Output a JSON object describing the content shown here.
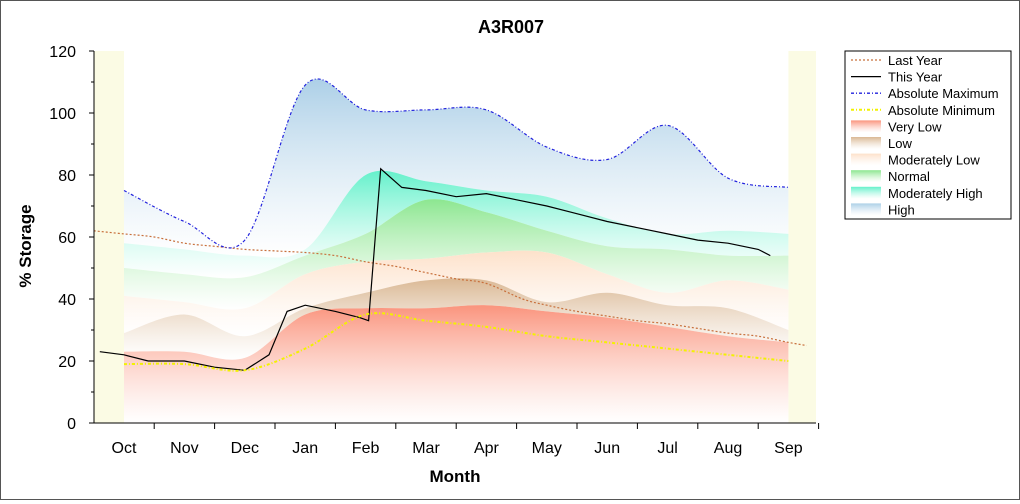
{
  "chart_data": {
    "type": "area",
    "title": "A3R007",
    "xlabel": "Month",
    "ylabel": "% Storage",
    "ylim": [
      0,
      120
    ],
    "yticks": [
      0,
      20,
      40,
      60,
      80,
      100,
      120
    ],
    "categories": [
      "Oct",
      "Nov",
      "Dec",
      "Jan",
      "Feb",
      "Mar",
      "Apr",
      "May",
      "Jun",
      "Jul",
      "Aug",
      "Sep"
    ],
    "legend_position": "right",
    "band_months": [
      0,
      1,
      2,
      3,
      4,
      5,
      6,
      7,
      8,
      9,
      10,
      11
    ],
    "bands": [
      {
        "name": "Very Low",
        "color": "#fa8e76",
        "lower": [
          0,
          0,
          0,
          0,
          0,
          0,
          0,
          0,
          0,
          0,
          0,
          0
        ],
        "upper": [
          23,
          23,
          21,
          35,
          37,
          37,
          38,
          36,
          34,
          31,
          28,
          26
        ]
      },
      {
        "name": "Low",
        "color": "#d8b48e",
        "lower": [
          23,
          23,
          21,
          35,
          37,
          37,
          38,
          36,
          34,
          31,
          28,
          26
        ],
        "upper": [
          29,
          35,
          28,
          37,
          42,
          46,
          46,
          39,
          42,
          38,
          37,
          30
        ]
      },
      {
        "name": "Moderately Low",
        "color": "#fde0c8",
        "lower": [
          29,
          35,
          28,
          37,
          42,
          46,
          46,
          39,
          42,
          38,
          37,
          30
        ],
        "upper": [
          41,
          39,
          37,
          48,
          52,
          53,
          55,
          55,
          48,
          42,
          46,
          43
        ]
      },
      {
        "name": "Normal",
        "color": "#86e58a",
        "lower": [
          41,
          39,
          37,
          48,
          52,
          53,
          55,
          55,
          48,
          42,
          46,
          43
        ],
        "upper": [
          50,
          48,
          47,
          54,
          61,
          72,
          68,
          62,
          57,
          56,
          54,
          54
        ]
      },
      {
        "name": "Moderately High",
        "color": "#5cf0c8",
        "lower": [
          50,
          48,
          47,
          54,
          61,
          72,
          68,
          62,
          57,
          56,
          54,
          54
        ],
        "upper": [
          58,
          56,
          54,
          56,
          80,
          78,
          75,
          73,
          66,
          61,
          62,
          61
        ]
      },
      {
        "name": "High",
        "color": "#a8cde6",
        "lower": [
          58,
          56,
          54,
          56,
          80,
          78,
          75,
          73,
          66,
          61,
          62,
          61
        ],
        "upper": [
          75,
          65,
          59,
          109,
          101,
          101,
          101,
          89,
          85,
          96,
          79,
          76
        ]
      }
    ],
    "series": [
      {
        "name": "Last Year",
        "style": "dotted",
        "color": "#c8703c",
        "x": [
          -0.5,
          0,
          0.5,
          1,
          1.5,
          2,
          2.5,
          3,
          3.5,
          4,
          4.5,
          5,
          5.5,
          6,
          6.6,
          7,
          7.5,
          8,
          8.5,
          9,
          9.5,
          10,
          10.5,
          11,
          11.3
        ],
        "values": [
          62,
          61,
          60,
          58,
          57,
          56,
          55.5,
          55,
          54,
          52,
          50.5,
          48.5,
          46.5,
          45,
          40,
          38,
          36,
          34.5,
          33,
          32,
          30.5,
          29,
          28,
          26,
          25
        ]
      },
      {
        "name": "This Year",
        "style": "solid",
        "color": "#000000",
        "x": [
          -0.4,
          0,
          0.4,
          1,
          1.5,
          2,
          2.4,
          2.7,
          3,
          3.5,
          3.9,
          4.05,
          4.25,
          4.6,
          5,
          5.5,
          6,
          6.5,
          7,
          7.4,
          8,
          8.5,
          9,
          9.5,
          10,
          10.5,
          10.7
        ],
        "values": [
          23,
          22,
          20,
          20,
          18,
          17,
          22,
          36,
          38,
          36,
          34,
          33,
          82,
          76,
          75,
          73,
          74,
          72,
          70,
          68,
          65,
          63,
          61,
          59,
          58,
          56,
          54
        ]
      },
      {
        "name": "Absolute Maximum",
        "style": "dashdot",
        "color": "#2222dd",
        "x": [
          0,
          1,
          2,
          3,
          4,
          5,
          6,
          7,
          8,
          9,
          10,
          11
        ],
        "values": [
          75,
          65,
          59,
          109,
          101,
          101,
          101,
          89,
          85,
          96,
          79,
          76
        ]
      },
      {
        "name": "Absolute Minimum",
        "style": "dashdot",
        "color": "#f2f200",
        "x": [
          0,
          1,
          2,
          3,
          4,
          5,
          6,
          7,
          8,
          9,
          10,
          11
        ],
        "values": [
          19,
          19,
          17,
          24,
          35,
          33,
          31,
          28,
          26,
          24,
          22,
          20
        ]
      }
    ],
    "legend": [
      "Last Year",
      "This Year",
      "Absolute Maximum",
      "Absolute Minimum",
      "Very Low",
      "Low",
      "Moderately Low",
      "Normal",
      "Moderately High",
      "High"
    ]
  }
}
